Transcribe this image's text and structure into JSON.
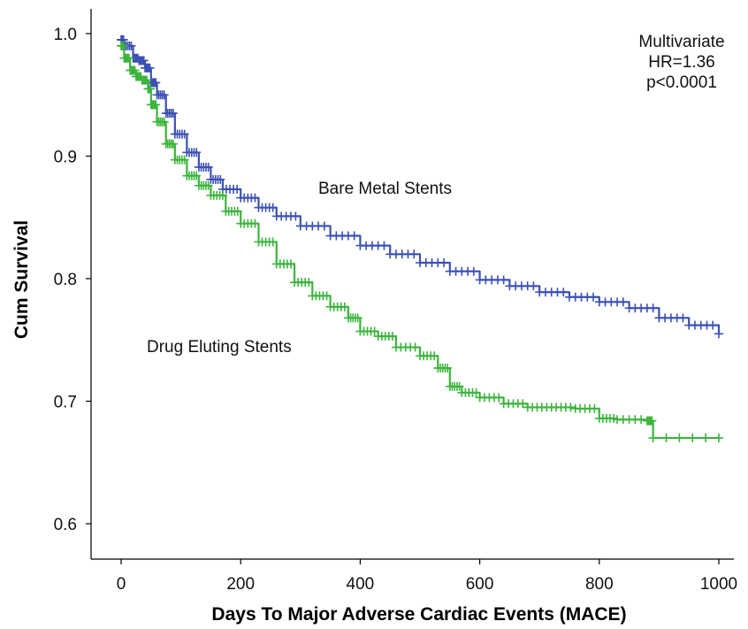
{
  "chart_data": {
    "type": "line",
    "xlabel": "Days To Major Adverse Cardiac Events (MACE)",
    "ylabel": "Cum Survival",
    "xlim": [
      0,
      1000
    ],
    "ylim": [
      0.6,
      1.0
    ],
    "x_ticks": [
      0,
      200,
      400,
      600,
      800,
      1000
    ],
    "x_tick_labels": [
      "0",
      "200",
      "400",
      "600",
      "800",
      "1000"
    ],
    "y_ticks": [
      0.6,
      0.7,
      0.8,
      0.9,
      1.0
    ],
    "y_tick_labels": [
      "0.6",
      "0.7",
      "0.8",
      "0.9",
      "1.0"
    ],
    "grid": false,
    "annotation": [
      "Multivariate",
      "HR=1.36",
      "p<0.0001"
    ],
    "series": [
      {
        "name": "Bare Metal Stents",
        "color": "#3c50b4",
        "x": [
          0,
          5,
          20,
          30,
          40,
          50,
          60,
          75,
          90,
          110,
          130,
          150,
          170,
          200,
          230,
          260,
          300,
          350,
          400,
          450,
          500,
          550,
          600,
          650,
          700,
          750,
          800,
          850,
          900,
          950,
          1000
        ],
        "y": [
          0.995,
          0.99,
          0.98,
          0.978,
          0.972,
          0.96,
          0.95,
          0.935,
          0.918,
          0.903,
          0.891,
          0.881,
          0.873,
          0.866,
          0.858,
          0.851,
          0.843,
          0.835,
          0.827,
          0.82,
          0.813,
          0.806,
          0.799,
          0.794,
          0.789,
          0.785,
          0.781,
          0.776,
          0.768,
          0.762,
          0.755
        ]
      },
      {
        "name": "Drug Eluting Stents",
        "color": "#3cb43c",
        "x": [
          0,
          5,
          15,
          25,
          35,
          45,
          50,
          60,
          75,
          90,
          110,
          130,
          150,
          175,
          200,
          230,
          260,
          290,
          320,
          350,
          380,
          400,
          430,
          460,
          500,
          530,
          550,
          570,
          600,
          640,
          680,
          720,
          760,
          800,
          830,
          880,
          890,
          1000
        ],
        "y": [
          0.99,
          0.98,
          0.97,
          0.965,
          0.962,
          0.955,
          0.942,
          0.928,
          0.91,
          0.897,
          0.884,
          0.876,
          0.868,
          0.855,
          0.845,
          0.83,
          0.812,
          0.797,
          0.786,
          0.777,
          0.768,
          0.757,
          0.753,
          0.744,
          0.737,
          0.727,
          0.712,
          0.707,
          0.703,
          0.698,
          0.695,
          0.695,
          0.694,
          0.686,
          0.685,
          0.684,
          0.67,
          0.67
        ]
      }
    ]
  }
}
